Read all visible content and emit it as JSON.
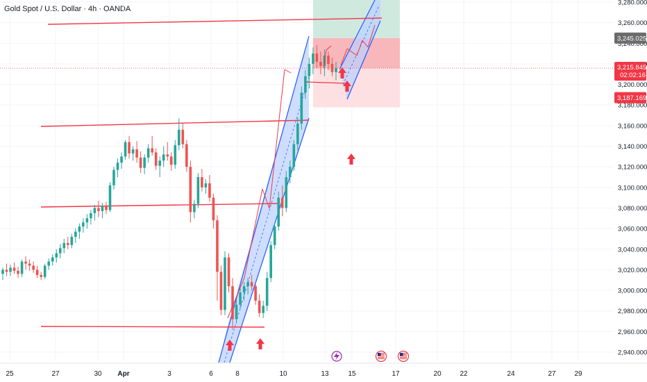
{
  "header": {
    "title": "Gold Spot / U.S. Dollar · 4h · OANDA"
  },
  "colors": {
    "up": "#26a69a",
    "down": "#ef5350",
    "line": "#f23645",
    "channel": "#2962ff",
    "channel_fill": "#bbd0ff",
    "target_fill": "#cfe9df",
    "stop_fill": "#f7b7bb",
    "stop_light": "#fde0e2"
  },
  "price_tags": {
    "target": {
      "value": "3,245.025",
      "color": "#6b6b6b"
    },
    "current": {
      "value": "3,215.845",
      "time": "02:02:16",
      "color": "#f23645"
    },
    "stop": {
      "value": "3,187.169",
      "color": "#f23645"
    }
  },
  "icons": [
    "lightning-icon",
    "us-flag-icon",
    "us-flag-icon"
  ],
  "chart_data": {
    "type": "candlestick",
    "instrument": "Gold Spot / U.S. Dollar",
    "timeframe": "4h",
    "broker": "OANDA",
    "ylim": [
      2930,
      3285
    ],
    "y_ticks": [
      "3,280.000",
      "3,260.000",
      "3,240.000",
      "3,220.000",
      "3,200.000",
      "3,180.000",
      "3,160.000",
      "3,140.000",
      "3,120.000",
      "3,100.000",
      "3,080.000",
      "3,060.000",
      "3,040.000",
      "3,020.000",
      "3,000.000",
      "2,980.000",
      "2,960.000",
      "2,940.000"
    ],
    "x_ticks": [
      "25",
      "27",
      "30",
      "Apr",
      "3",
      "6",
      "8",
      "10",
      "13",
      "15",
      "17",
      "20",
      "22",
      "24",
      "27",
      "29"
    ],
    "horizontal_lines": [
      3262,
      3164,
      3081,
      2966
    ],
    "candles": [
      [
        3016,
        3022,
        3010,
        3020
      ],
      [
        3020,
        3026,
        3014,
        3018
      ],
      [
        3018,
        3025,
        3014,
        3022
      ],
      [
        3022,
        3027,
        3016,
        3019
      ],
      [
        3019,
        3023,
        3012,
        3016
      ],
      [
        3016,
        3030,
        3013,
        3028
      ],
      [
        3028,
        3033,
        3020,
        3026
      ],
      [
        3026,
        3030,
        3019,
        3024
      ],
      [
        3024,
        3028,
        3017,
        3020
      ],
      [
        3020,
        3024,
        3012,
        3015
      ],
      [
        3015,
        3018,
        3010,
        3013
      ],
      [
        3013,
        3026,
        3011,
        3024
      ],
      [
        3024,
        3031,
        3020,
        3028
      ],
      [
        3028,
        3035,
        3024,
        3032
      ],
      [
        3032,
        3040,
        3027,
        3036
      ],
      [
        3036,
        3045,
        3031,
        3041
      ],
      [
        3041,
        3050,
        3036,
        3046
      ],
      [
        3046,
        3052,
        3040,
        3044
      ],
      [
        3044,
        3055,
        3041,
        3052
      ],
      [
        3052,
        3060,
        3046,
        3057
      ],
      [
        3057,
        3065,
        3050,
        3062
      ],
      [
        3062,
        3070,
        3056,
        3066
      ],
      [
        3066,
        3074,
        3060,
        3070
      ],
      [
        3070,
        3078,
        3064,
        3075
      ],
      [
        3075,
        3083,
        3068,
        3080
      ],
      [
        3080,
        3087,
        3071,
        3077
      ],
      [
        3077,
        3085,
        3070,
        3082
      ],
      [
        3082,
        3086,
        3074,
        3078
      ],
      [
        3078,
        3105,
        3076,
        3102
      ],
      [
        3102,
        3120,
        3098,
        3117
      ],
      [
        3117,
        3128,
        3110,
        3124
      ],
      [
        3124,
        3134,
        3118,
        3130
      ],
      [
        3130,
        3146,
        3127,
        3144
      ],
      [
        3144,
        3150,
        3128,
        3133
      ],
      [
        3133,
        3140,
        3126,
        3137
      ],
      [
        3137,
        3145,
        3124,
        3129
      ],
      [
        3129,
        3135,
        3114,
        3119
      ],
      [
        3119,
        3132,
        3113,
        3129
      ],
      [
        3129,
        3142,
        3124,
        3138
      ],
      [
        3138,
        3150,
        3131,
        3134
      ],
      [
        3134,
        3138,
        3117,
        3121
      ],
      [
        3121,
        3130,
        3110,
        3126
      ],
      [
        3126,
        3140,
        3120,
        3132
      ],
      [
        3132,
        3144,
        3126,
        3130
      ],
      [
        3130,
        3134,
        3116,
        3122
      ],
      [
        3122,
        3146,
        3118,
        3141
      ],
      [
        3141,
        3167,
        3136,
        3156
      ],
      [
        3156,
        3162,
        3138,
        3142
      ],
      [
        3142,
        3146,
        3115,
        3120
      ],
      [
        3120,
        3126,
        3066,
        3076
      ],
      [
        3076,
        3088,
        3070,
        3084
      ],
      [
        3084,
        3114,
        3080,
        3110
      ],
      [
        3110,
        3118,
        3096,
        3100
      ],
      [
        3100,
        3108,
        3094,
        3104
      ],
      [
        3104,
        3112,
        3086,
        3090
      ],
      [
        3090,
        3094,
        3060,
        3068
      ],
      [
        3068,
        3073,
        2990,
        3018
      ],
      [
        3018,
        3024,
        2976,
        2981
      ],
      [
        2981,
        3038,
        2976,
        3032
      ],
      [
        3032,
        3036,
        2998,
        3004
      ],
      [
        3004,
        3012,
        2962,
        2972
      ],
      [
        2972,
        2992,
        2968,
        2986
      ],
      [
        2986,
        3002,
        2982,
        2998
      ],
      [
        2998,
        3008,
        2990,
        3004
      ],
      [
        3004,
        3012,
        2996,
        3008
      ],
      [
        3008,
        3015,
        3000,
        3004
      ],
      [
        3004,
        3006,
        2986,
        2990
      ],
      [
        2990,
        2996,
        2974,
        2978
      ],
      [
        2978,
        2990,
        2973,
        2985
      ],
      [
        2985,
        3018,
        2980,
        3012
      ],
      [
        3012,
        3048,
        3008,
        3044
      ],
      [
        3044,
        3066,
        3040,
        3062
      ],
      [
        3062,
        3096,
        3058,
        3090
      ],
      [
        3090,
        3102,
        3072,
        3080
      ],
      [
        3080,
        3116,
        3076,
        3110
      ],
      [
        3110,
        3126,
        3104,
        3120
      ],
      [
        3120,
        3146,
        3116,
        3142
      ],
      [
        3142,
        3168,
        3136,
        3162
      ],
      [
        3162,
        3198,
        3156,
        3192
      ],
      [
        3192,
        3214,
        3186,
        3208
      ],
      [
        3208,
        3226,
        3196,
        3220
      ],
      [
        3220,
        3236,
        3210,
        3230
      ],
      [
        3230,
        3238,
        3216,
        3222
      ],
      [
        3222,
        3232,
        3210,
        3218
      ],
      [
        3218,
        3234,
        3208,
        3228
      ],
      [
        3228,
        3232,
        3214,
        3220
      ],
      [
        3220,
        3226,
        3208,
        3212
      ],
      [
        3212,
        3222,
        3204,
        3216
      ]
    ],
    "channels": [
      {
        "name": "",
        "from": [
          "6",
          2936
        ],
        "to": [
          "10",
          3200
        ]
      },
      {
        "name": "",
        "from": [
          "14",
          3200
        ],
        "to": [
          "16",
          3280
        ]
      }
    ],
    "position": {
      "entry": 3215.845,
      "target": 3245.025,
      "stop": 3187.169
    }
  }
}
